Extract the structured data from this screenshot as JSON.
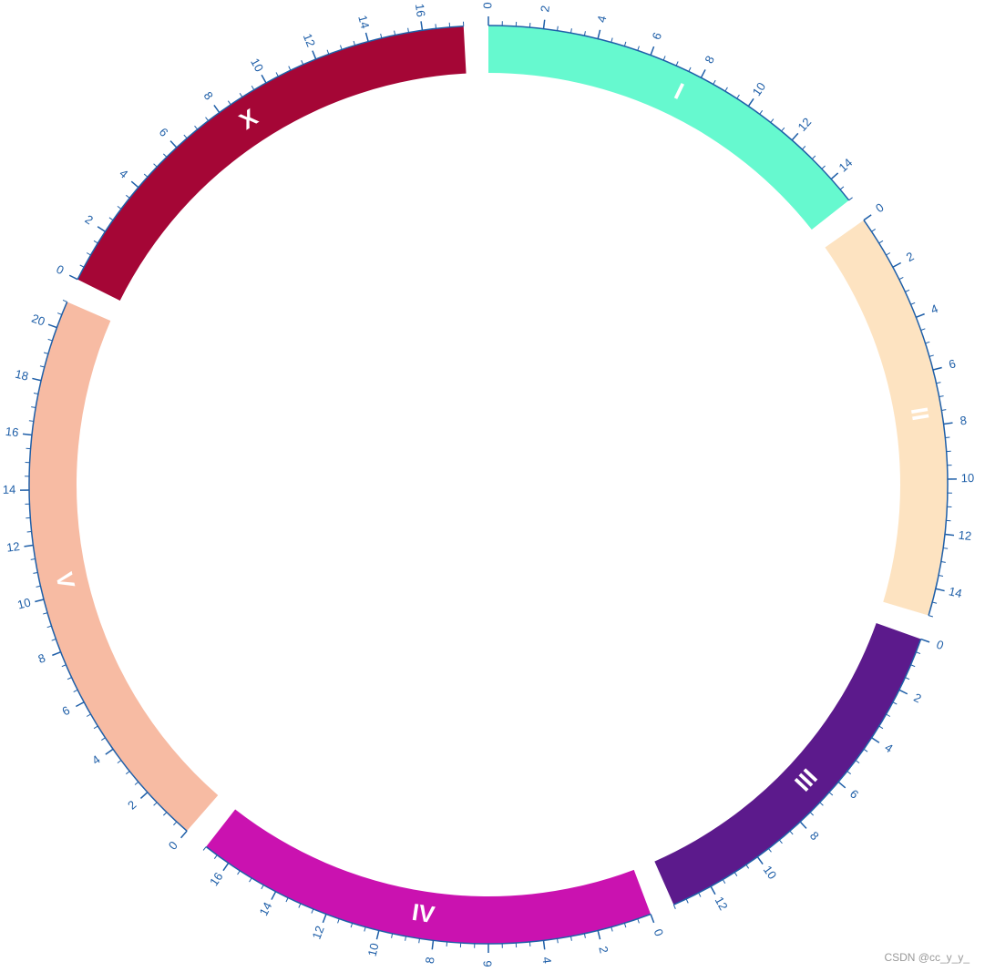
{
  "chart_data": {
    "type": "ideogram",
    "segments": [
      {
        "name": "I",
        "color": "#66f9cf",
        "length": 15,
        "ticks": [
          0,
          2,
          4,
          6,
          8,
          10,
          12,
          14
        ]
      },
      {
        "name": "II",
        "color": "#fde3c1",
        "length": 15,
        "ticks": [
          0,
          2,
          4,
          6,
          8,
          10,
          12,
          14
        ]
      },
      {
        "name": "III",
        "color": "#5c1a8c",
        "length": 13.5,
        "ticks": [
          0,
          2,
          4,
          6,
          8,
          10,
          12
        ]
      },
      {
        "name": "IV",
        "color": "#ca12b0",
        "length": 17,
        "ticks": [
          0,
          2,
          4,
          6,
          8,
          10,
          12,
          14,
          16
        ]
      },
      {
        "name": "V",
        "color": "#f7bba3",
        "length": 21,
        "ticks": [
          0,
          2,
          4,
          6,
          8,
          10,
          12,
          14,
          16,
          18,
          20
        ]
      },
      {
        "name": "X",
        "color": "#a50636",
        "length": 17.5,
        "ticks": [
          0,
          2,
          4,
          6,
          8,
          10,
          12,
          14,
          16
        ]
      }
    ],
    "minor_tick_step": 0.5,
    "axis_color": "#1f5fa8",
    "watermark": "CSDN @cc_y_y_"
  }
}
